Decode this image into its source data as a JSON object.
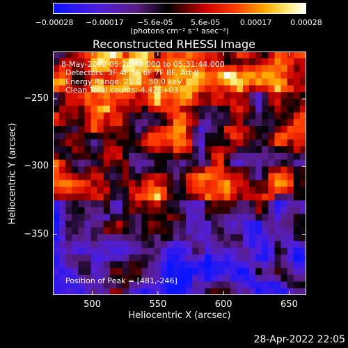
{
  "colorbar": {
    "ticks": [
      "-0.00028",
      "-0.00017",
      "-5.6e-05",
      "5.6e-05",
      "0.00017",
      "0.00028"
    ],
    "units": "(photons cm⁻² s⁻¹ asec⁻²)"
  },
  "annotations": {
    "time": "8-May-2002 05:26:48.000 to 05:31:44.000",
    "detectors": "Detectors: 3F 4F 5F 6F 7F 8F, Att 0",
    "energy": "Energy Range: 25.0 - 50.0 keV",
    "clean": "Clean    Total counts: 4.42E+03",
    "peak": "Position of Peak = [481,-246]"
  },
  "footer": "28-Apr-2022 22:05",
  "chart_data": {
    "type": "heatmap",
    "title": "Reconstructed RHESSI Image",
    "xlabel": "Heliocentric X (arcsec)",
    "ylabel": "Heliocentric Y (arcsec)",
    "xlim": [
      470,
      663
    ],
    "ylim": [
      -395,
      -215
    ],
    "xticks": [
      500,
      550,
      600,
      650
    ],
    "yticks": [
      -250,
      -300,
      -350
    ],
    "ytick_labels": [
      "−250",
      "−300",
      "−350"
    ],
    "value_range": [
      -0.00028,
      0.00028
    ],
    "colormap": "rhessi-blue-black-red-yellow-white",
    "peak": [
      481,
      -246
    ],
    "grid_size": [
      40,
      36
    ],
    "values": []
  }
}
